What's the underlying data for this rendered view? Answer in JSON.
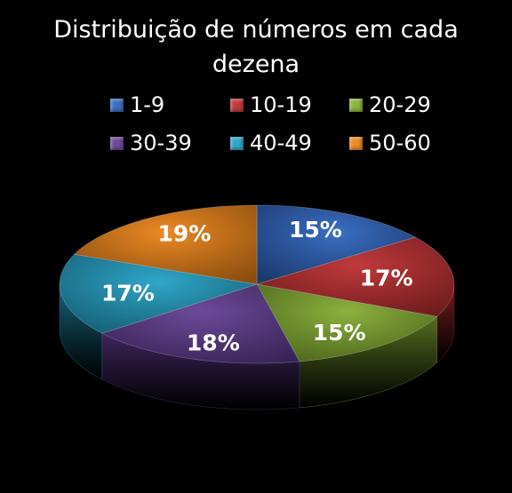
{
  "chart_data": {
    "type": "pie",
    "title": "Distribuição de números em cada dezena",
    "title_lines": [
      "Distribuição de números em cada",
      "dezena"
    ],
    "categories": [
      "1-9",
      "10-19",
      "20-29",
      "30-39",
      "40-49",
      "50-60"
    ],
    "values": [
      15,
      17,
      15,
      18,
      17,
      19
    ],
    "labels": [
      "15%",
      "17%",
      "15%",
      "18%",
      "17%",
      "19%"
    ],
    "colors": [
      "#3A6FC4",
      "#C13A3C",
      "#8CB23E",
      "#6E4A9A",
      "#2FA7C9",
      "#EC8A24"
    ],
    "dark_colors": [
      "#1F3F78",
      "#7A1E20",
      "#55701F",
      "#3F2760",
      "#17677F",
      "#9A5510"
    ],
    "legend_position": "top",
    "style": "3d"
  }
}
